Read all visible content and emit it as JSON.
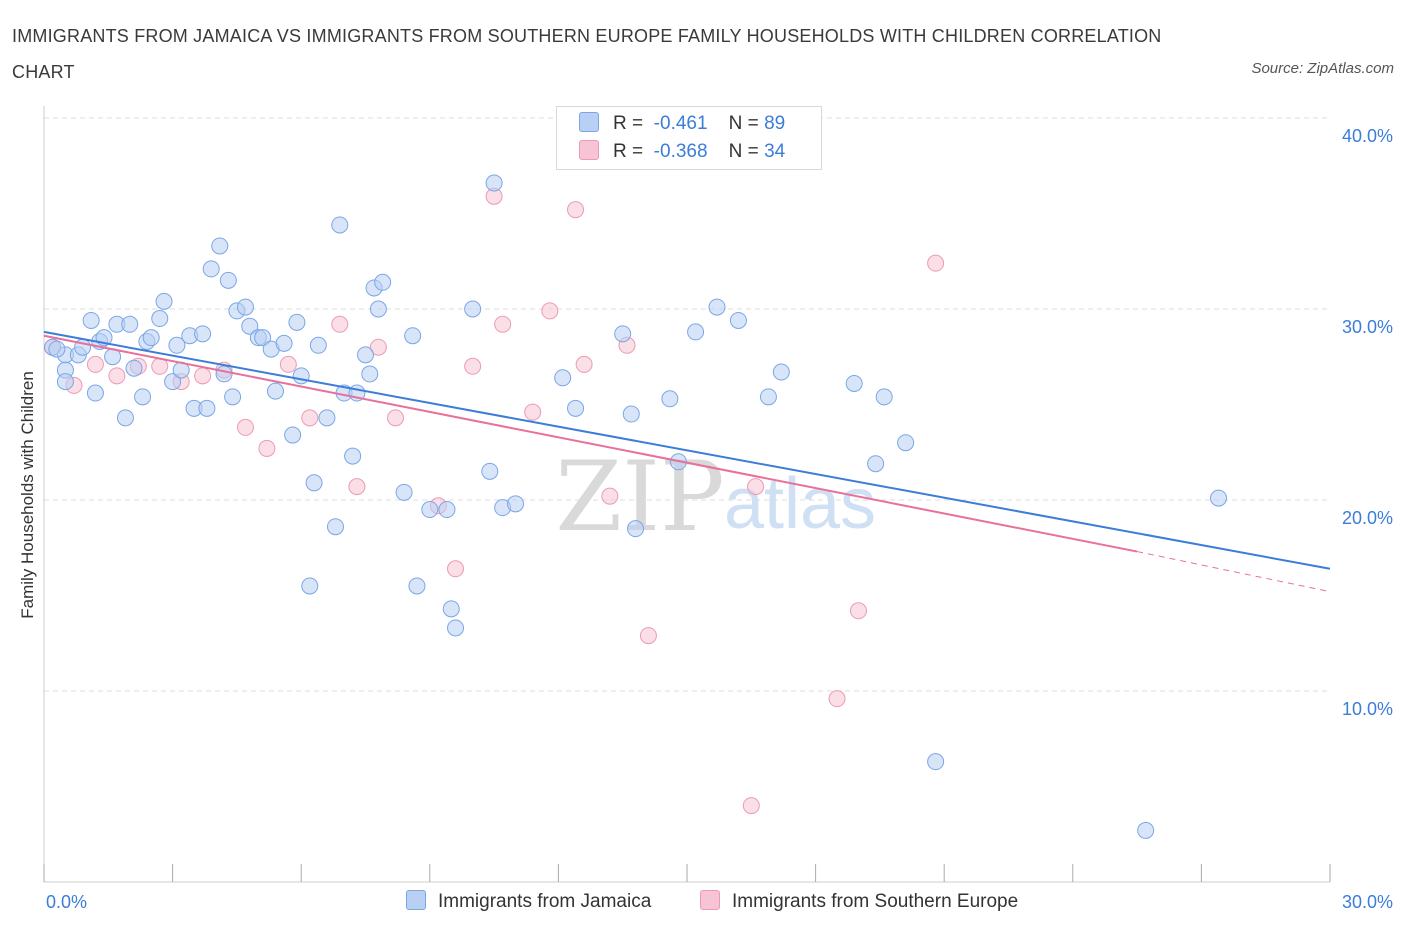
{
  "title": "IMMIGRANTS FROM JAMAICA VS IMMIGRANTS FROM SOUTHERN EUROPE FAMILY HOUSEHOLDS WITH CHILDREN CORRELATION CHART",
  "source": "Source: ZipAtlas.com",
  "watermark": {
    "zip": "ZIP",
    "atlas": "atlas"
  },
  "colors": {
    "blue": "#3b7dd8",
    "blue_fill": "#b8d0f4",
    "pink": "#e8709a",
    "pink_fill": "#f6c4d4",
    "grid": "#dddddd"
  },
  "legend": {
    "r_label": "R =",
    "n_label": "N =",
    "series1": {
      "r": "-0.461",
      "n": "89"
    },
    "series2": {
      "r": "-0.368",
      "n": "34"
    }
  },
  "chart_data": {
    "type": "scatter",
    "title": "IMMIGRANTS FROM JAMAICA VS IMMIGRANTS FROM SOUTHERN EUROPE FAMILY HOUSEHOLDS WITH CHILDREN CORRELATION CHART",
    "xlabel": "",
    "ylabel": "Family Households with Children",
    "xlim": [
      0,
      30
    ],
    "ylim": [
      0,
      40
    ],
    "x_tick_labels": [
      "0.0%",
      "30.0%"
    ],
    "y_ticks": [
      10,
      20,
      30,
      40
    ],
    "y_tick_labels": [
      "10.0%",
      "20.0%",
      "30.0%",
      "40.0%"
    ],
    "grid": true,
    "legend_position": "top-center",
    "series": [
      {
        "name": "Immigrants from Jamaica",
        "r": -0.461,
        "n": 89,
        "trend": {
          "x": [
            0,
            30
          ],
          "y": [
            28.8,
            16.4
          ]
        },
        "points": [
          [
            0.2,
            28.0
          ],
          [
            0.5,
            27.6
          ],
          [
            0.5,
            26.8
          ],
          [
            0.5,
            26.2
          ],
          [
            0.8,
            27.6
          ],
          [
            0.9,
            28.0
          ],
          [
            1.1,
            29.4
          ],
          [
            1.2,
            25.6
          ],
          [
            1.3,
            28.3
          ],
          [
            1.4,
            28.5
          ],
          [
            1.6,
            27.5
          ],
          [
            1.7,
            29.2
          ],
          [
            1.9,
            24.3
          ],
          [
            2.0,
            29.2
          ],
          [
            2.1,
            26.9
          ],
          [
            2.3,
            25.4
          ],
          [
            2.4,
            28.3
          ],
          [
            2.5,
            28.5
          ],
          [
            2.7,
            29.5
          ],
          [
            2.8,
            30.4
          ],
          [
            3.0,
            26.2
          ],
          [
            3.1,
            28.1
          ],
          [
            3.2,
            26.8
          ],
          [
            3.4,
            28.6
          ],
          [
            3.5,
            24.8
          ],
          [
            3.7,
            28.7
          ],
          [
            3.8,
            24.8
          ],
          [
            3.9,
            32.1
          ],
          [
            4.1,
            33.3
          ],
          [
            4.2,
            26.6
          ],
          [
            4.3,
            31.5
          ],
          [
            4.4,
            25.4
          ],
          [
            4.5,
            29.9
          ],
          [
            4.7,
            30.1
          ],
          [
            4.8,
            29.1
          ],
          [
            5.0,
            28.5
          ],
          [
            5.1,
            28.5
          ],
          [
            5.3,
            27.9
          ],
          [
            5.4,
            25.7
          ],
          [
            5.6,
            28.2
          ],
          [
            5.8,
            23.4
          ],
          [
            5.9,
            29.3
          ],
          [
            6.0,
            26.5
          ],
          [
            6.2,
            15.5
          ],
          [
            6.3,
            20.9
          ],
          [
            6.4,
            28.1
          ],
          [
            6.6,
            24.3
          ],
          [
            6.8,
            18.6
          ],
          [
            6.9,
            34.4
          ],
          [
            7.0,
            25.6
          ],
          [
            7.2,
            22.3
          ],
          [
            7.3,
            25.6
          ],
          [
            7.5,
            27.6
          ],
          [
            7.6,
            26.6
          ],
          [
            7.7,
            31.1
          ],
          [
            7.8,
            30.0
          ],
          [
            7.9,
            31.4
          ],
          [
            8.4,
            20.4
          ],
          [
            8.6,
            28.6
          ],
          [
            8.7,
            15.5
          ],
          [
            9.0,
            19.5
          ],
          [
            9.4,
            19.5
          ],
          [
            9.5,
            14.3
          ],
          [
            9.6,
            13.3
          ],
          [
            10.0,
            30.0
          ],
          [
            10.4,
            21.5
          ],
          [
            10.5,
            36.6
          ],
          [
            10.7,
            19.6
          ],
          [
            11.0,
            19.8
          ],
          [
            12.1,
            26.4
          ],
          [
            12.4,
            24.8
          ],
          [
            13.5,
            28.7
          ],
          [
            13.7,
            24.5
          ],
          [
            13.8,
            18.5
          ],
          [
            14.6,
            25.3
          ],
          [
            14.8,
            22.0
          ],
          [
            15.2,
            28.8
          ],
          [
            15.7,
            30.1
          ],
          [
            16.2,
            29.4
          ],
          [
            16.9,
            25.4
          ],
          [
            17.2,
            26.7
          ],
          [
            18.9,
            26.1
          ],
          [
            19.4,
            21.9
          ],
          [
            19.6,
            25.4
          ],
          [
            20.1,
            23.0
          ],
          [
            20.8,
            6.3
          ],
          [
            27.4,
            20.1
          ],
          [
            25.7,
            2.7
          ],
          [
            0.3,
            27.9
          ]
        ]
      },
      {
        "name": "Immigrants from Southern Europe",
        "r": -0.368,
        "n": 34,
        "trend": {
          "x": [
            0,
            25.5
          ],
          "y": [
            28.6,
            17.3
          ]
        },
        "trend_dashed": {
          "x": [
            25.5,
            30
          ],
          "y": [
            17.3,
            15.2
          ]
        },
        "points": [
          [
            0.2,
            28.0
          ],
          [
            0.7,
            26.0
          ],
          [
            1.2,
            27.1
          ],
          [
            1.7,
            26.5
          ],
          [
            2.2,
            27.0
          ],
          [
            2.7,
            27.0
          ],
          [
            3.2,
            26.2
          ],
          [
            3.7,
            26.5
          ],
          [
            4.2,
            26.8
          ],
          [
            4.7,
            23.8
          ],
          [
            5.2,
            22.7
          ],
          [
            5.7,
            27.1
          ],
          [
            6.2,
            24.3
          ],
          [
            6.9,
            29.2
          ],
          [
            7.3,
            20.7
          ],
          [
            7.8,
            28.0
          ],
          [
            8.2,
            24.3
          ],
          [
            9.2,
            19.7
          ],
          [
            9.6,
            16.4
          ],
          [
            10.0,
            27.0
          ],
          [
            10.5,
            35.9
          ],
          [
            10.7,
            29.2
          ],
          [
            11.4,
            24.6
          ],
          [
            11.8,
            29.9
          ],
          [
            12.4,
            35.2
          ],
          [
            12.6,
            27.1
          ],
          [
            13.2,
            20.2
          ],
          [
            13.6,
            28.1
          ],
          [
            14.1,
            12.9
          ],
          [
            16.5,
            4.0
          ],
          [
            16.6,
            20.7
          ],
          [
            18.5,
            9.6
          ],
          [
            19.0,
            14.2
          ],
          [
            20.8,
            32.4
          ]
        ]
      }
    ]
  },
  "x_axis": {
    "left_label": "0.0%",
    "right_label": "30.0%"
  },
  "y_axis_label": "Family Households with Children"
}
